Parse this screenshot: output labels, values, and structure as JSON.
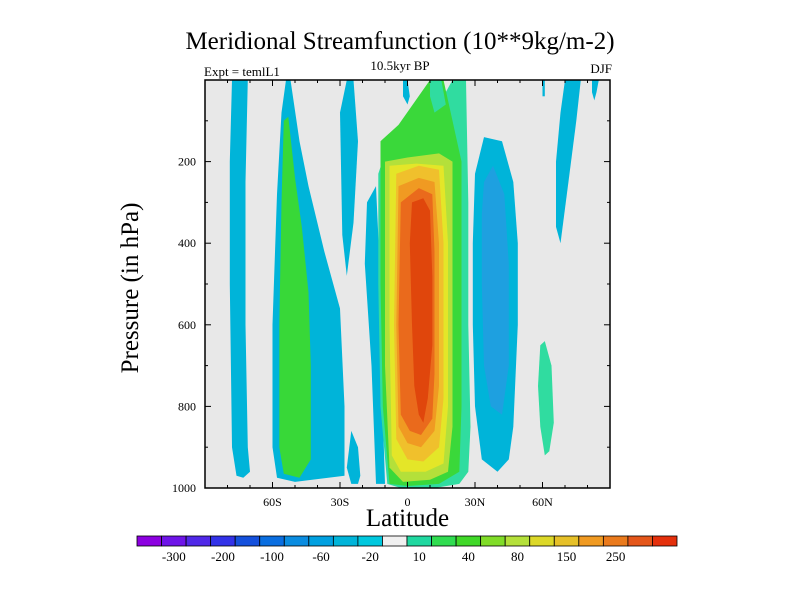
{
  "chart_data": {
    "type": "heatmap",
    "title": "Meridional Streamfunction (10**9kg/m-2)",
    "subtitle": "10.5kyr BP",
    "left_label": "Expt = temlL1",
    "right_label": "DJF",
    "xlabel": "Latitude",
    "ylabel": "Pressure (in hPa)",
    "xlim": [
      -90,
      90
    ],
    "ylim": [
      1000,
      0
    ],
    "background_color": "#e8e8e8",
    "x_ticks": [
      {
        "value": -60,
        "label": "60S"
      },
      {
        "value": -30,
        "label": "30S"
      },
      {
        "value": 0,
        "label": "0"
      },
      {
        "value": 30,
        "label": "30N"
      },
      {
        "value": 60,
        "label": "60N"
      }
    ],
    "y_ticks": [
      {
        "value": 200,
        "label": "200"
      },
      {
        "value": 400,
        "label": "400"
      },
      {
        "value": 600,
        "label": "600"
      },
      {
        "value": 800,
        "label": "800"
      },
      {
        "value": 1000,
        "label": "1000"
      }
    ],
    "contour_bands": [
      {
        "name": "sh-outer-cell",
        "level": "-10",
        "color": "#00b4d9",
        "polygon": [
          [
            -78,
            0
          ],
          [
            -71,
            0
          ],
          [
            -72,
            250
          ],
          [
            -72,
            600
          ],
          [
            -71,
            900
          ],
          [
            -70,
            960
          ],
          [
            -73,
            975
          ],
          [
            -76,
            970
          ],
          [
            -78,
            900
          ],
          [
            -79,
            500
          ],
          [
            -79,
            200
          ]
        ]
      },
      {
        "name": "sh-ferrel-outer",
        "level": "-10",
        "color": "#00b4d9",
        "polygon": [
          [
            -52,
            0
          ],
          [
            -48,
            150
          ],
          [
            -44,
            260
          ],
          [
            -37,
            420
          ],
          [
            -30,
            560
          ],
          [
            -28,
            800
          ],
          [
            -28,
            970
          ],
          [
            -50,
            985
          ],
          [
            -58,
            975
          ],
          [
            -60,
            900
          ],
          [
            -60,
            600
          ],
          [
            -58,
            280
          ],
          [
            -56,
            80
          ],
          [
            -54,
            0
          ]
        ]
      },
      {
        "name": "sh-ferrel-core",
        "level": "10",
        "color": "#38d838",
        "polygon": [
          [
            -53,
            90
          ],
          [
            -50,
            240
          ],
          [
            -47,
            360
          ],
          [
            -44,
            520
          ],
          [
            -43,
            700
          ],
          [
            -43,
            930
          ],
          [
            -48,
            975
          ],
          [
            -55,
            965
          ],
          [
            -57,
            900
          ],
          [
            -57,
            600
          ],
          [
            -56,
            300
          ],
          [
            -55,
            100
          ]
        ]
      },
      {
        "name": "sh-mid-lobe",
        "level": "-10",
        "color": "#00b4d9",
        "polygon": [
          [
            -30,
            80
          ],
          [
            -27,
            0
          ],
          [
            -24,
            0
          ],
          [
            -22,
            150
          ],
          [
            -24,
            350
          ],
          [
            -27,
            480
          ],
          [
            -29,
            380
          ]
        ]
      },
      {
        "name": "sh-lower-lobe",
        "level": "-10",
        "color": "#00b4d9",
        "polygon": [
          [
            -25,
            860
          ],
          [
            -22,
            900
          ],
          [
            -21,
            970
          ],
          [
            -22,
            990
          ],
          [
            -25,
            990
          ],
          [
            -27,
            950
          ]
        ]
      },
      {
        "name": "sh-hadley-edge",
        "level": "-10",
        "color": "#00b4d9",
        "polygon": [
          [
            -18,
            300
          ],
          [
            -14,
            260
          ],
          [
            -12,
            500
          ],
          [
            -11,
            820
          ],
          [
            -10,
            990
          ],
          [
            -14,
            990
          ],
          [
            -16,
            700
          ],
          [
            -19,
            450
          ]
        ]
      },
      {
        "name": "hadley-level-10",
        "level": "10",
        "color": "#30dca0",
        "polygon": [
          [
            -13,
            230
          ],
          [
            -10,
            180
          ],
          [
            0,
            120
          ],
          [
            12,
            80
          ],
          [
            16,
            40
          ],
          [
            20,
            0
          ],
          [
            26,
            0
          ],
          [
            27,
            300
          ],
          [
            27,
            600
          ],
          [
            28,
            850
          ],
          [
            27,
            960
          ],
          [
            23,
            990
          ],
          [
            12,
            1000
          ],
          [
            -3,
            1000
          ],
          [
            -9,
            990
          ],
          [
            -12,
            800
          ],
          [
            -13,
            500
          ]
        ]
      },
      {
        "name": "hadley-level-40",
        "level": "40",
        "color": "#3ad83a",
        "polygon": [
          [
            -12,
            150
          ],
          [
            -4,
            110
          ],
          [
            10,
            0
          ],
          [
            16,
            0
          ],
          [
            20,
            100
          ],
          [
            24,
            200
          ],
          [
            24,
            500
          ],
          [
            24,
            800
          ],
          [
            23,
            960
          ],
          [
            14,
            990
          ],
          [
            0,
            995
          ],
          [
            -8,
            990
          ],
          [
            -11,
            800
          ],
          [
            -12,
            500
          ]
        ]
      },
      {
        "name": "hadley-level-80",
        "level": "80",
        "color": "#b4e03a",
        "polygon": [
          [
            -10,
            200
          ],
          [
            0,
            190
          ],
          [
            14,
            180
          ],
          [
            20,
            200
          ],
          [
            20,
            500
          ],
          [
            20,
            850
          ],
          [
            18,
            960
          ],
          [
            10,
            980
          ],
          [
            -2,
            985
          ],
          [
            -8,
            950
          ],
          [
            -10,
            700
          ]
        ]
      },
      {
        "name": "hadley-level-100",
        "level": "100",
        "color": "#e4e628",
        "polygon": [
          [
            -8,
            210
          ],
          [
            4,
            205
          ],
          [
            16,
            210
          ],
          [
            18,
            400
          ],
          [
            18,
            800
          ],
          [
            16,
            940
          ],
          [
            8,
            960
          ],
          [
            -3,
            960
          ],
          [
            -7,
            920
          ],
          [
            -8,
            600
          ]
        ]
      },
      {
        "name": "hadley-level-120",
        "level": "120",
        "color": "#f0c02c",
        "polygon": [
          [
            -5,
            230
          ],
          [
            5,
            210
          ],
          [
            14,
            220
          ],
          [
            16,
            400
          ],
          [
            16,
            780
          ],
          [
            14,
            900
          ],
          [
            7,
            935
          ],
          [
            0,
            930
          ],
          [
            -5,
            880
          ],
          [
            -6,
            600
          ]
        ]
      },
      {
        "name": "hadley-level-150",
        "level": "150",
        "color": "#f09a22",
        "polygon": [
          [
            -4,
            260
          ],
          [
            5,
            240
          ],
          [
            12,
            250
          ],
          [
            14,
            400
          ],
          [
            14,
            750
          ],
          [
            12,
            860
          ],
          [
            6,
            900
          ],
          [
            0,
            890
          ],
          [
            -4,
            850
          ],
          [
            -5,
            600
          ]
        ]
      },
      {
        "name": "hadley-level-200",
        "level": "200",
        "color": "#ea6a1c",
        "polygon": [
          [
            -3,
            300
          ],
          [
            5,
            265
          ],
          [
            11,
            280
          ],
          [
            12,
            420
          ],
          [
            12,
            720
          ],
          [
            11,
            830
          ],
          [
            6,
            870
          ],
          [
            1,
            860
          ],
          [
            -3,
            820
          ],
          [
            -4,
            600
          ]
        ]
      },
      {
        "name": "hadley-level-250",
        "level": "250",
        "color": "#e0460c",
        "polygon": [
          [
            2,
            300
          ],
          [
            7,
            290
          ],
          [
            10,
            320
          ],
          [
            11,
            480
          ],
          [
            11,
            650
          ],
          [
            9,
            780
          ],
          [
            7,
            840
          ],
          [
            5,
            820
          ],
          [
            3,
            750
          ],
          [
            2,
            600
          ],
          [
            1,
            400
          ]
        ]
      },
      {
        "name": "top-strip-1",
        "level": "-10",
        "color": "#00b4d9",
        "polygon": [
          [
            -2,
            0
          ],
          [
            0,
            0
          ],
          [
            1,
            40
          ],
          [
            0,
            60
          ],
          [
            -2,
            40
          ]
        ]
      },
      {
        "name": "top-strip-2",
        "level": "10",
        "color": "#30dca0",
        "polygon": [
          [
            10,
            0
          ],
          [
            15,
            0
          ],
          [
            17,
            60
          ],
          [
            12,
            80
          ],
          [
            10,
            40
          ]
        ]
      },
      {
        "name": "nh-ferrel",
        "level": "-10",
        "color": "#00b4d9",
        "polygon": [
          [
            30,
            230
          ],
          [
            34,
            140
          ],
          [
            42,
            150
          ],
          [
            47,
            250
          ],
          [
            49,
            400
          ],
          [
            49,
            600
          ],
          [
            47,
            850
          ],
          [
            45,
            930
          ],
          [
            40,
            960
          ],
          [
            33,
            930
          ],
          [
            30,
            800
          ],
          [
            29,
            600
          ],
          [
            29,
            400
          ]
        ]
      },
      {
        "name": "nh-ferrel-core",
        "level": "-40",
        "color": "#1ea0e0",
        "polygon": [
          [
            34,
            250
          ],
          [
            38,
            210
          ],
          [
            43,
            280
          ],
          [
            45,
            450
          ],
          [
            45,
            700
          ],
          [
            42,
            820
          ],
          [
            37,
            800
          ],
          [
            34,
            700
          ],
          [
            33,
            500
          ],
          [
            33,
            330
          ]
        ]
      },
      {
        "name": "nh-polar",
        "level": "-10",
        "color": "#00b4d9",
        "polygon": [
          [
            70,
            0
          ],
          [
            77,
            0
          ],
          [
            75,
            100
          ],
          [
            72,
            230
          ],
          [
            68,
            400
          ],
          [
            66,
            360
          ],
          [
            66,
            200
          ],
          [
            68,
            80
          ]
        ]
      },
      {
        "name": "nh-polar-cap",
        "level": "-10",
        "color": "#00b4d9",
        "polygon": [
          [
            82,
            0
          ],
          [
            85,
            0
          ],
          [
            84,
            30
          ],
          [
            83,
            50
          ],
          [
            82,
            30
          ]
        ]
      },
      {
        "name": "nh-polar-sliver",
        "level": "-10",
        "color": "#00b4d9",
        "polygon": [
          [
            60,
            0
          ],
          [
            61,
            0
          ],
          [
            61,
            40
          ],
          [
            60,
            40
          ]
        ]
      },
      {
        "name": "nh-lower-lobe",
        "level": "10",
        "color": "#30dca0",
        "polygon": [
          [
            59,
            650
          ],
          [
            61,
            640
          ],
          [
            64,
            700
          ],
          [
            65,
            840
          ],
          [
            63,
            910
          ],
          [
            61,
            920
          ],
          [
            59,
            850
          ],
          [
            58,
            750
          ]
        ]
      }
    ],
    "colorbar": {
      "colors": [
        "#8c00e0",
        "#6e14e8",
        "#5028e8",
        "#3232e8",
        "#1450dc",
        "#0a6ee0",
        "#0a8ce0",
        "#00a0e0",
        "#00b4d9",
        "#00c8de",
        "#f0f0f0",
        "#20d8a0",
        "#30dc50",
        "#40d828",
        "#80dc28",
        "#b4e03a",
        "#dcd828",
        "#e6c028",
        "#f09a22",
        "#ea7a1c",
        "#e4561a",
        "#e4300c"
      ],
      "labels": [
        "-300",
        "-200",
        "-100",
        "-60",
        "-20",
        "10",
        "40",
        "80",
        "150",
        "250"
      ]
    }
  }
}
